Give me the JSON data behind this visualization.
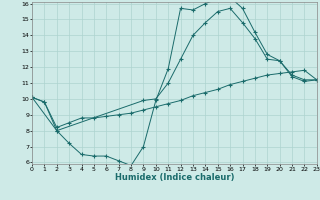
{
  "title": "",
  "xlabel": "Humidex (Indice chaleur)",
  "xlim": [
    0,
    23
  ],
  "ylim": [
    6,
    16
  ],
  "yticks": [
    6,
    7,
    8,
    9,
    10,
    11,
    12,
    13,
    14,
    15,
    16
  ],
  "xticks": [
    0,
    1,
    2,
    3,
    4,
    5,
    6,
    7,
    8,
    9,
    10,
    11,
    12,
    13,
    14,
    15,
    16,
    17,
    18,
    19,
    20,
    21,
    22,
    23
  ],
  "background_color": "#ceeae7",
  "grid_color": "#aed4d0",
  "line_color": "#1a6b6b",
  "line1_x": [
    0,
    1,
    2,
    3,
    4,
    5,
    6,
    7,
    8,
    9,
    10,
    11,
    12,
    13,
    14,
    15,
    16,
    17,
    18,
    19,
    20,
    21,
    22,
    23
  ],
  "line1_y": [
    10.1,
    9.8,
    8.0,
    7.2,
    6.5,
    6.4,
    6.4,
    6.1,
    5.8,
    7.0,
    9.9,
    11.9,
    15.7,
    15.6,
    16.0,
    16.3,
    16.4,
    15.7,
    14.2,
    12.8,
    12.4,
    11.4,
    11.1,
    11.2
  ],
  "line2_x": [
    0,
    2,
    9,
    10,
    11,
    12,
    13,
    14,
    15,
    16,
    17,
    18,
    19,
    20,
    21,
    22,
    23
  ],
  "line2_y": [
    10.1,
    8.0,
    9.9,
    10.0,
    11.0,
    12.5,
    14.0,
    14.8,
    15.5,
    15.7,
    14.8,
    13.8,
    12.5,
    12.4,
    11.5,
    11.2,
    11.2
  ],
  "line3_x": [
    0,
    1,
    2,
    3,
    4,
    5,
    6,
    7,
    8,
    9,
    10,
    11,
    12,
    13,
    14,
    15,
    16,
    17,
    18,
    19,
    20,
    21,
    22,
    23
  ],
  "line3_y": [
    10.1,
    9.8,
    8.2,
    8.5,
    8.8,
    8.8,
    8.9,
    9.0,
    9.1,
    9.3,
    9.5,
    9.7,
    9.9,
    10.2,
    10.4,
    10.6,
    10.9,
    11.1,
    11.3,
    11.5,
    11.6,
    11.7,
    11.8,
    11.2
  ]
}
